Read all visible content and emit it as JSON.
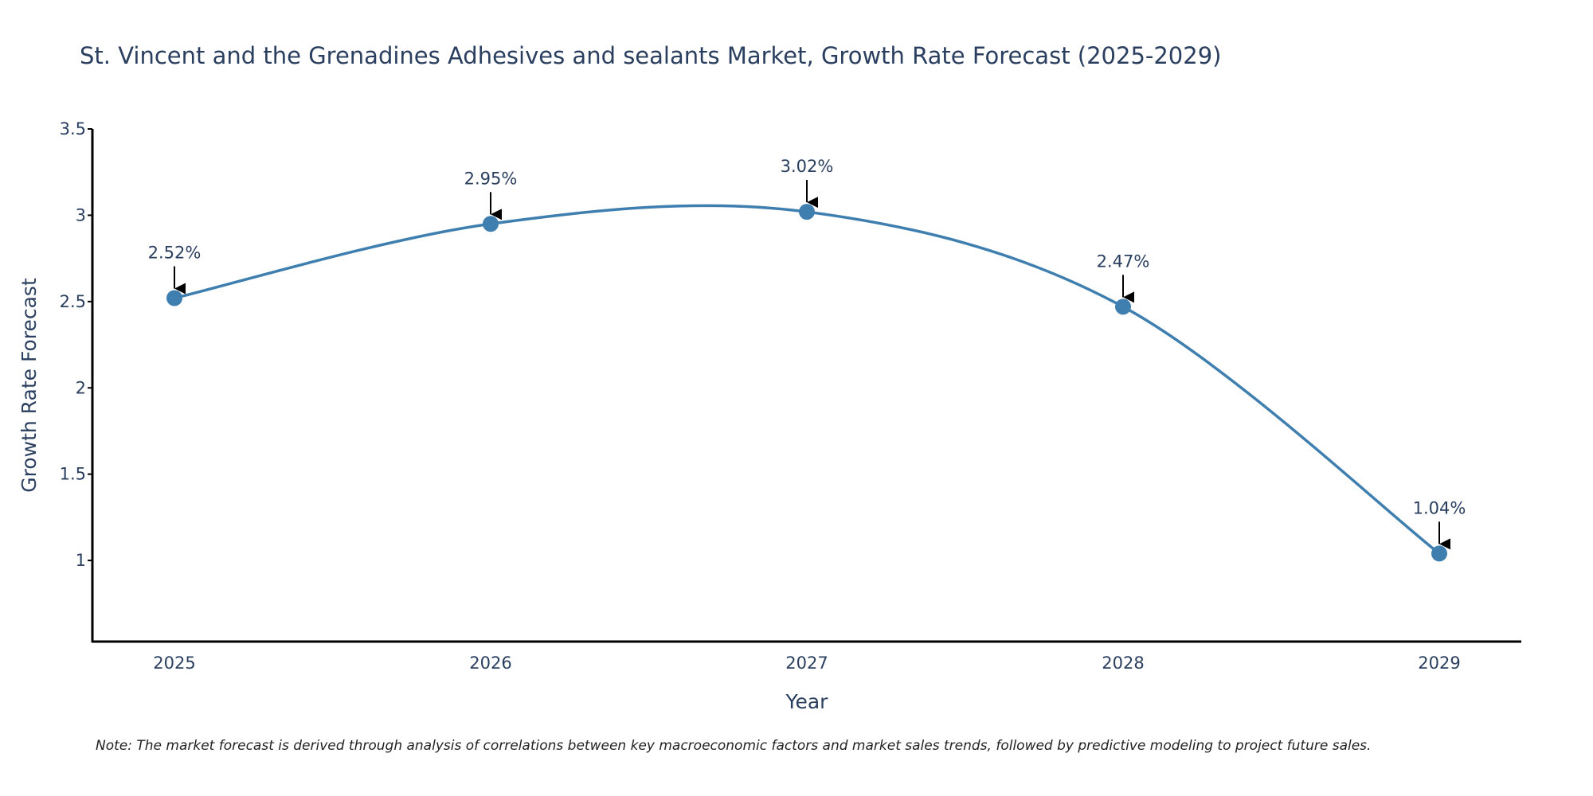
{
  "chart_data": {
    "type": "line",
    "title": "St. Vincent and the Grenadines Adhesives and sealants Market, Growth Rate Forecast (2025-2029)",
    "xlabel": "Year",
    "ylabel": "Growth Rate Forecast",
    "categories": [
      "2025",
      "2026",
      "2027",
      "2028",
      "2029"
    ],
    "series": [
      {
        "name": "Growth Rate Forecast",
        "values": [
          2.52,
          2.95,
          3.02,
          2.47,
          1.04
        ],
        "labels": [
          "2.52%",
          "2.95%",
          "3.02%",
          "2.47%",
          "1.04%"
        ]
      }
    ],
    "ylim": [
      0.53,
      3.5
    ],
    "yticks": [
      "1",
      "1.5",
      "2",
      "2.5",
      "3",
      "3.5"
    ],
    "grid": false,
    "line_color": "#3f7fb0",
    "marker_color": "#3f7fb0",
    "axis_color": "#000000",
    "note": "Note: The market forecast is derived through analysis of correlations between key macroeconomic factors and market sales trends, followed by predictive modeling to project future sales."
  }
}
